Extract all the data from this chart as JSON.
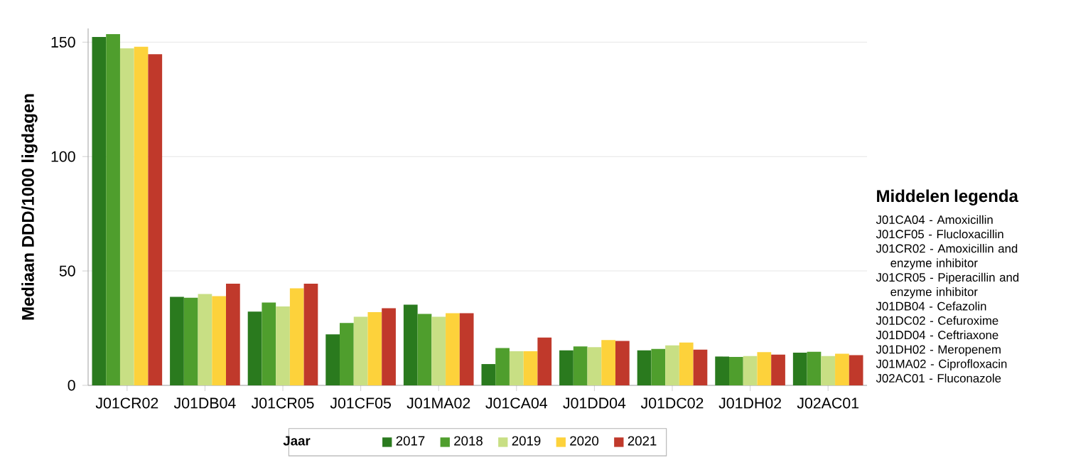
{
  "chart_data": {
    "type": "bar",
    "ylabel": "Mediaan DDD/1000 ligdagen",
    "legend_title": "Jaar",
    "categories": [
      "J01CR02",
      "J01DB04",
      "J01CR05",
      "J01CF05",
      "J01MA02",
      "J01CA04",
      "J01DD04",
      "J01DC02",
      "J01DH02",
      "J02AC01"
    ],
    "series": [
      {
        "name": "2017",
        "color": "#2a7a1e",
        "values": [
          152.3,
          38.7,
          32.2,
          22.3,
          35.3,
          9.3,
          15.3,
          15.3,
          12.6,
          14.3
        ]
      },
      {
        "name": "2018",
        "color": "#4f9e2d",
        "values": [
          153.5,
          38.3,
          36.2,
          27.3,
          31.2,
          16.3,
          17.0,
          15.9,
          12.4,
          14.7
        ]
      },
      {
        "name": "2019",
        "color": "#c8df84",
        "values": [
          147.3,
          39.9,
          34.5,
          30.0,
          30.0,
          14.9,
          16.7,
          17.5,
          12.8,
          12.8
        ]
      },
      {
        "name": "2020",
        "color": "#fdd23b",
        "values": [
          148.0,
          39.0,
          42.4,
          32.0,
          31.5,
          14.9,
          19.8,
          18.7,
          14.5,
          13.8
        ]
      },
      {
        "name": "2021",
        "color": "#c0392b",
        "values": [
          144.7,
          44.4,
          44.4,
          33.7,
          31.5,
          20.9,
          19.4,
          15.6,
          13.4,
          13.2
        ]
      }
    ],
    "ylim": [
      0,
      156
    ],
    "yticks": [
      0,
      50,
      100,
      150
    ],
    "grid": "y",
    "legend": "bottom",
    "annotations": [
      "Middelen legenda",
      "J01CA04 - Amoxicillin",
      "J01CF05 - Flucloxacillin",
      "J01CR02 - Amoxicillin and enzyme inhibitor",
      "J01CR05 - Piperacillin and enzyme inhibitor",
      "J01DB04 - Cefazolin",
      "J01DC02 - Cefuroxime",
      "J01DD04 - Ceftriaxone",
      "J01DH02 - Meropenem",
      "J01MA02 - Ciprofloxacin",
      "J02AC01 - Fluconazole"
    ]
  }
}
